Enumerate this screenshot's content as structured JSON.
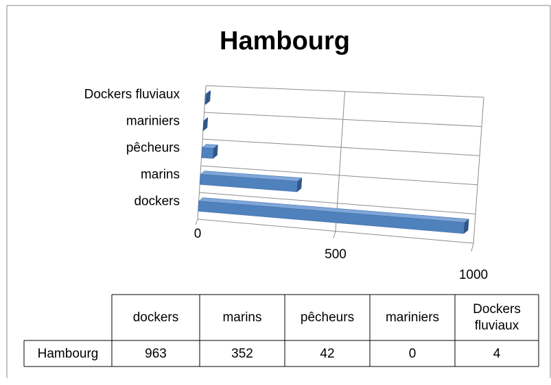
{
  "chart_data": {
    "type": "bar3d_horizontal",
    "title": "Hambourg",
    "categories": [
      "dockers",
      "marins",
      "pêcheurs",
      "mariniers",
      "Dockers fluviaux"
    ],
    "series": [
      {
        "name": "Hambourg",
        "color": "#4f81bd",
        "values": [
          963,
          352,
          42,
          0,
          4
        ]
      }
    ],
    "xlim": [
      0,
      1000
    ],
    "xticks": [
      0,
      500,
      1000
    ],
    "grid": true,
    "data_table": true
  }
}
